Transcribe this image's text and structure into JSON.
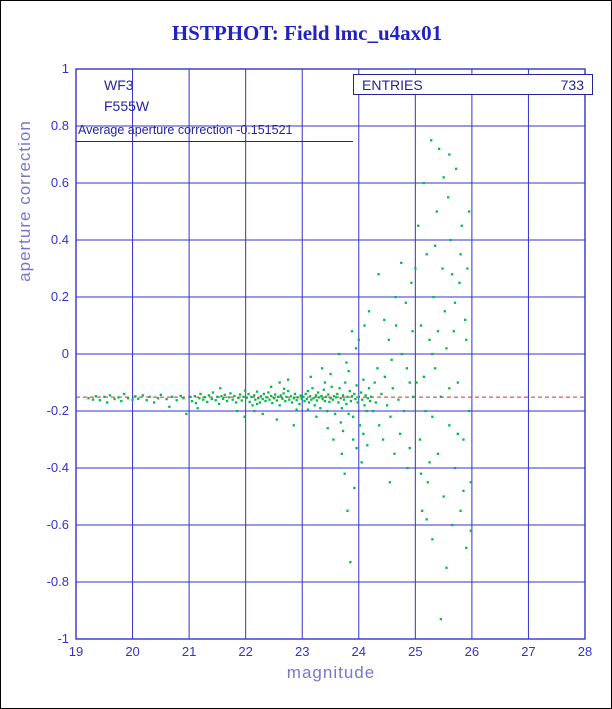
{
  "title": "HSTPHOT: Field lmc_u4ax01",
  "annotations": {
    "camera": "WF3",
    "filter": "F555W",
    "entries_label": "ENTRIES",
    "entries_value": "733",
    "average_text": "Average aperture correction -0.151521"
  },
  "colors": {
    "title": "#2222c4",
    "grid": "#3333cc",
    "tick_labels": "#3333cc",
    "axis_titles": "#7777cc",
    "annotation_text": "#24249c",
    "points": "#00bb44",
    "reference_line": "#cc3333",
    "frame": "#000000"
  },
  "chart_data": {
    "type": "scatter",
    "title": "HSTPHOT: Field lmc_u4ax01",
    "xlabel": "magnitude",
    "ylabel": "aperture correction",
    "xlim": [
      19,
      28
    ],
    "ylim": [
      -1,
      1
    ],
    "grid": true,
    "x_ticks": [
      19,
      20,
      21,
      22,
      23,
      24,
      25,
      26,
      27,
      28
    ],
    "y_ticks": [
      1,
      0.8,
      0.6,
      0.4,
      0.2,
      0,
      -0.2,
      -0.4,
      -0.6,
      -0.8,
      -1
    ],
    "y_tick_labels": [
      "1",
      "0.8",
      "0.6",
      "0.4",
      "0.2",
      "0",
      "-0.2",
      "-0.4",
      "-0.6",
      "-0.8",
      "-1"
    ],
    "grid_color": "#3333cc",
    "tick_color": "#3333cc",
    "point_color": "#00bb44",
    "entries": 733,
    "average_aperture_correction": -0.151521,
    "reference_line": {
      "y": -0.151521,
      "style": "dashed",
      "color": "#cc3333"
    },
    "points": [
      [
        19.22,
        -0.155
      ],
      [
        19.3,
        -0.16
      ],
      [
        19.35,
        -0.148
      ],
      [
        19.42,
        -0.162
      ],
      [
        19.5,
        -0.15
      ],
      [
        19.55,
        -0.17
      ],
      [
        19.6,
        -0.145
      ],
      [
        19.68,
        -0.158
      ],
      [
        19.75,
        -0.152
      ],
      [
        19.8,
        -0.165
      ],
      [
        19.85,
        -0.14
      ],
      [
        19.92,
        -0.155
      ],
      [
        20.0,
        -0.16
      ],
      [
        20.05,
        -0.148
      ],
      [
        20.1,
        -0.157
      ],
      [
        20.18,
        -0.145
      ],
      [
        20.25,
        -0.162
      ],
      [
        20.3,
        -0.15
      ],
      [
        20.38,
        -0.17
      ],
      [
        20.45,
        -0.155
      ],
      [
        20.5,
        -0.143
      ],
      [
        20.6,
        -0.158
      ],
      [
        20.65,
        -0.185
      ],
      [
        20.7,
        -0.15
      ],
      [
        20.78,
        -0.162
      ],
      [
        20.85,
        -0.147
      ],
      [
        20.9,
        -0.155
      ],
      [
        20.95,
        -0.21
      ],
      [
        21.02,
        -0.15
      ],
      [
        21.05,
        -0.165
      ],
      [
        21.1,
        -0.148
      ],
      [
        21.12,
        -0.172
      ],
      [
        21.15,
        -0.19
      ],
      [
        21.18,
        -0.155
      ],
      [
        21.2,
        -0.14
      ],
      [
        21.25,
        -0.16
      ],
      [
        21.28,
        -0.151
      ],
      [
        21.32,
        -0.168
      ],
      [
        21.35,
        -0.145
      ],
      [
        21.4,
        -0.158
      ],
      [
        21.42,
        -0.135
      ],
      [
        21.47,
        -0.162
      ],
      [
        21.5,
        -0.15
      ],
      [
        21.53,
        -0.175
      ],
      [
        21.55,
        -0.12
      ],
      [
        21.57,
        -0.148
      ],
      [
        21.6,
        -0.157
      ],
      [
        21.63,
        -0.143
      ],
      [
        21.67,
        -0.165
      ],
      [
        21.7,
        -0.152
      ],
      [
        21.73,
        -0.138
      ],
      [
        21.77,
        -0.16
      ],
      [
        21.8,
        -0.147
      ],
      [
        21.83,
        -0.17
      ],
      [
        21.85,
        -0.2
      ],
      [
        21.87,
        -0.154
      ],
      [
        21.9,
        -0.142
      ],
      [
        21.93,
        -0.163
      ],
      [
        21.96,
        -0.15
      ],
      [
        21.98,
        -0.22
      ],
      [
        21.99,
        -0.128
      ],
      [
        22.02,
        -0.153
      ],
      [
        22.05,
        -0.14
      ],
      [
        22.07,
        -0.168
      ],
      [
        22.1,
        -0.15
      ],
      [
        22.12,
        -0.18
      ],
      [
        22.15,
        -0.145
      ],
      [
        22.15,
        -0.2
      ],
      [
        22.17,
        -0.16
      ],
      [
        22.2,
        -0.132
      ],
      [
        22.2,
        -0.175
      ],
      [
        22.22,
        -0.155
      ],
      [
        22.25,
        -0.17
      ],
      [
        22.27,
        -0.148
      ],
      [
        22.3,
        -0.158
      ],
      [
        22.3,
        -0.21
      ],
      [
        22.32,
        -0.14
      ],
      [
        22.35,
        -0.165
      ],
      [
        22.37,
        -0.152
      ],
      [
        22.4,
        -0.135
      ],
      [
        22.42,
        -0.16
      ],
      [
        22.45,
        -0.147
      ],
      [
        22.45,
        -0.115
      ],
      [
        22.47,
        -0.172
      ],
      [
        22.5,
        -0.155
      ],
      [
        22.52,
        -0.142
      ],
      [
        22.55,
        -0.163
      ],
      [
        22.55,
        -0.23
      ],
      [
        22.57,
        -0.15
      ],
      [
        22.6,
        -0.18
      ],
      [
        22.6,
        -0.1
      ],
      [
        22.62,
        -0.145
      ],
      [
        22.65,
        -0.157
      ],
      [
        22.67,
        -0.138
      ],
      [
        22.68,
        -0.122
      ],
      [
        22.7,
        -0.165
      ],
      [
        22.72,
        -0.15
      ],
      [
        22.75,
        -0.13
      ],
      [
        22.75,
        -0.09
      ],
      [
        22.77,
        -0.16
      ],
      [
        22.8,
        -0.148
      ],
      [
        22.82,
        -0.17
      ],
      [
        22.85,
        -0.155
      ],
      [
        22.85,
        -0.25
      ],
      [
        22.87,
        -0.14
      ],
      [
        22.9,
        -0.162
      ],
      [
        22.9,
        -0.195
      ],
      [
        22.92,
        -0.152
      ],
      [
        22.95,
        -0.175
      ],
      [
        22.97,
        -0.146
      ],
      [
        22.99,
        -0.158
      ],
      [
        23.02,
        -0.15
      ],
      [
        23.04,
        -0.165
      ],
      [
        23.06,
        -0.14
      ],
      [
        23.08,
        -0.158
      ],
      [
        23.1,
        -0.13
      ],
      [
        23.1,
        -0.195
      ],
      [
        23.12,
        -0.17
      ],
      [
        23.14,
        -0.148
      ],
      [
        23.15,
        -0.08
      ],
      [
        23.16,
        -0.16
      ],
      [
        23.18,
        -0.12
      ],
      [
        23.2,
        -0.155
      ],
      [
        23.22,
        -0.18
      ],
      [
        23.24,
        -0.145
      ],
      [
        23.25,
        -0.22
      ],
      [
        23.26,
        -0.163
      ],
      [
        23.28,
        -0.135
      ],
      [
        23.3,
        -0.152
      ],
      [
        23.32,
        -0.19
      ],
      [
        23.34,
        -0.147
      ],
      [
        23.35,
        -0.05
      ],
      [
        23.36,
        -0.158
      ],
      [
        23.38,
        -0.125
      ],
      [
        23.4,
        -0.165
      ],
      [
        23.4,
        -0.1
      ],
      [
        23.42,
        -0.15
      ],
      [
        23.44,
        -0.2
      ],
      [
        23.45,
        -0.26
      ],
      [
        23.46,
        -0.142
      ],
      [
        23.48,
        -0.168
      ],
      [
        23.5,
        -0.155
      ],
      [
        23.5,
        -0.07
      ],
      [
        23.52,
        -0.115
      ],
      [
        23.54,
        -0.16
      ],
      [
        23.55,
        -0.3
      ],
      [
        23.56,
        -0.148
      ],
      [
        23.58,
        -0.21
      ],
      [
        23.6,
        -0.152
      ],
      [
        23.62,
        -0.14
      ],
      [
        23.64,
        -0.17
      ],
      [
        23.65,
        0.0
      ],
      [
        23.66,
        -0.12
      ],
      [
        23.68,
        -0.155
      ],
      [
        23.68,
        -0.24
      ],
      [
        23.7,
        -0.19
      ],
      [
        23.7,
        -0.35
      ],
      [
        23.72,
        -0.145
      ],
      [
        23.72,
        -0.27
      ],
      [
        23.74,
        -0.16
      ],
      [
        23.75,
        -0.42
      ],
      [
        23.76,
        -0.1
      ],
      [
        23.78,
        -0.175
      ],
      [
        23.78,
        -0.03
      ],
      [
        23.8,
        -0.15
      ],
      [
        23.8,
        -0.55
      ],
      [
        23.82,
        -0.21
      ],
      [
        23.82,
        -0.06
      ],
      [
        23.84,
        -0.13
      ],
      [
        23.85,
        -0.73
      ],
      [
        23.86,
        -0.165
      ],
      [
        23.88,
        -0.148
      ],
      [
        23.88,
        0.08
      ],
      [
        23.9,
        -0.22
      ],
      [
        23.9,
        -0.3
      ],
      [
        23.92,
        -0.14
      ],
      [
        23.92,
        -0.47
      ],
      [
        23.94,
        -0.158
      ],
      [
        23.95,
        0.02
      ],
      [
        23.96,
        -0.11
      ],
      [
        23.96,
        -0.33
      ],
      [
        23.98,
        -0.17
      ],
      [
        24.0,
        -0.15
      ],
      [
        24.0,
        0.05
      ],
      [
        24.02,
        -0.25
      ],
      [
        24.04,
        -0.135
      ],
      [
        24.05,
        -0.38
      ],
      [
        24.06,
        -0.16
      ],
      [
        24.08,
        -0.09
      ],
      [
        24.08,
        -0.28
      ],
      [
        24.1,
        -0.18
      ],
      [
        24.1,
        0.1
      ],
      [
        24.12,
        -0.145
      ],
      [
        24.14,
        -0.2
      ],
      [
        24.15,
        -0.32
      ],
      [
        24.16,
        -0.155
      ],
      [
        24.18,
        -0.12
      ],
      [
        24.18,
        0.15
      ],
      [
        24.2,
        -0.165
      ],
      [
        24.22,
        -0.15
      ],
      [
        24.25,
        -0.2
      ],
      [
        24.28,
        -0.1
      ],
      [
        24.3,
        -0.17
      ],
      [
        24.33,
        -0.05
      ],
      [
        24.35,
        0.28
      ],
      [
        24.36,
        -0.25
      ],
      [
        24.4,
        -0.14
      ],
      [
        24.43,
        -0.3
      ],
      [
        24.45,
        0.12
      ],
      [
        24.46,
        -0.08
      ],
      [
        24.5,
        -0.18
      ],
      [
        24.53,
        0.05
      ],
      [
        24.55,
        -0.45
      ],
      [
        24.56,
        -0.22
      ],
      [
        24.58,
        -0.02
      ],
      [
        24.6,
        -0.12
      ],
      [
        24.63,
        -0.35
      ],
      [
        24.65,
        0.2
      ],
      [
        24.66,
        0.1
      ],
      [
        24.7,
        -0.16
      ],
      [
        24.73,
        -0.28
      ],
      [
        24.75,
        0.32
      ],
      [
        24.76,
        0.0
      ],
      [
        24.8,
        -0.2
      ],
      [
        24.83,
        0.18
      ],
      [
        24.85,
        -0.05
      ],
      [
        24.86,
        -0.4
      ],
      [
        24.9,
        -0.1
      ],
      [
        24.9,
        -0.33
      ],
      [
        24.93,
        0.25
      ],
      [
        24.95,
        0.08
      ],
      [
        24.96,
        -0.15
      ],
      [
        25.0,
        0.3
      ],
      [
        25.02,
        -0.1
      ],
      [
        25.05,
        0.45
      ],
      [
        25.08,
        -0.3
      ],
      [
        25.1,
        0.1
      ],
      [
        25.1,
        -0.42
      ],
      [
        25.12,
        -0.55
      ],
      [
        25.15,
        0.6
      ],
      [
        25.15,
        -0.08
      ],
      [
        25.18,
        -0.2
      ],
      [
        25.2,
        0.35
      ],
      [
        25.2,
        -0.58
      ],
      [
        25.22,
        -0.45
      ],
      [
        25.25,
        0.05
      ],
      [
        25.25,
        -0.38
      ],
      [
        25.28,
        0.75
      ],
      [
        25.3,
        -0.65
      ],
      [
        25.3,
        0.0
      ],
      [
        25.3,
        -0.22
      ],
      [
        25.32,
        0.2
      ],
      [
        25.35,
        -0.05
      ],
      [
        25.35,
        0.38
      ],
      [
        25.38,
        0.5
      ],
      [
        25.4,
        -0.35
      ],
      [
        25.4,
        0.08
      ],
      [
        25.42,
        0.72
      ],
      [
        25.45,
        -0.15
      ],
      [
        25.45,
        -0.93
      ],
      [
        25.48,
        0.3
      ],
      [
        25.5,
        -0.5
      ],
      [
        25.5,
        0.62
      ],
      [
        25.52,
        0.15
      ],
      [
        25.55,
        -0.75
      ],
      [
        25.55,
        0.02
      ],
      [
        25.58,
        0.55
      ],
      [
        25.6,
        -0.25
      ],
      [
        25.6,
        -0.12
      ],
      [
        25.6,
        0.7
      ],
      [
        25.62,
        0.4
      ],
      [
        25.65,
        -0.6
      ],
      [
        25.65,
        0.28
      ],
      [
        25.68,
        0.08
      ],
      [
        25.7,
        -0.4
      ],
      [
        25.7,
        0.18
      ],
      [
        25.72,
        0.65
      ],
      [
        25.75,
        -0.1
      ],
      [
        25.75,
        -0.28
      ],
      [
        25.78,
        0.25
      ],
      [
        25.8,
        -0.55
      ],
      [
        25.8,
        0.35
      ],
      [
        25.82,
        0.45
      ],
      [
        25.85,
        -0.3
      ],
      [
        25.85,
        -0.48
      ],
      [
        25.88,
        0.12
      ],
      [
        25.9,
        -0.68
      ],
      [
        25.9,
        0.05
      ],
      [
        25.92,
        0.3
      ],
      [
        25.95,
        -0.2
      ],
      [
        25.95,
        0.5
      ],
      [
        25.98,
        -0.45
      ],
      [
        25.98,
        -0.62
      ]
    ]
  }
}
